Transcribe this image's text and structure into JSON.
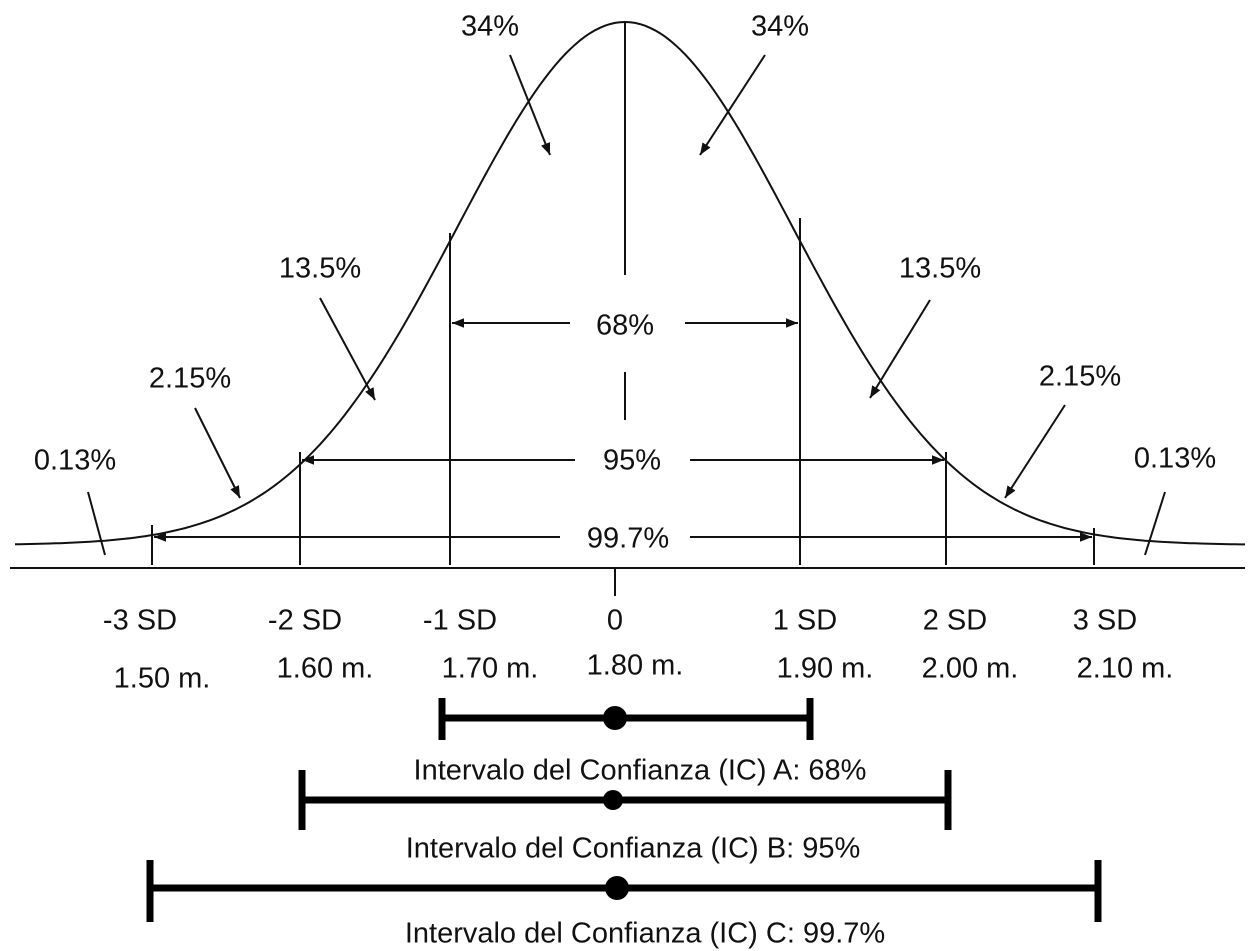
{
  "region_labels": [
    "34%",
    "34%",
    "13.5%",
    "13.5%",
    "2.15%",
    "2.15%",
    "0.13%",
    "0.13%"
  ],
  "span_labels": [
    "68%",
    "95%",
    "99.7%"
  ],
  "sd_labels": [
    "-3 SD",
    "-2 SD",
    "-1 SD",
    "0",
    "1 SD",
    "2 SD",
    "3 SD"
  ],
  "height_labels": [
    "1.50 m.",
    "1.60 m.",
    "1.70 m.",
    "1.80 m.",
    "1.90 m.",
    "2.00 m.",
    "2.10 m."
  ],
  "intervals": [
    "Intervalo del Confianza (IC) A: 68%",
    "Intervalo del Confianza (IC) B: 95%",
    "Intervalo del Confianza (IC) C: 99.7%"
  ]
}
